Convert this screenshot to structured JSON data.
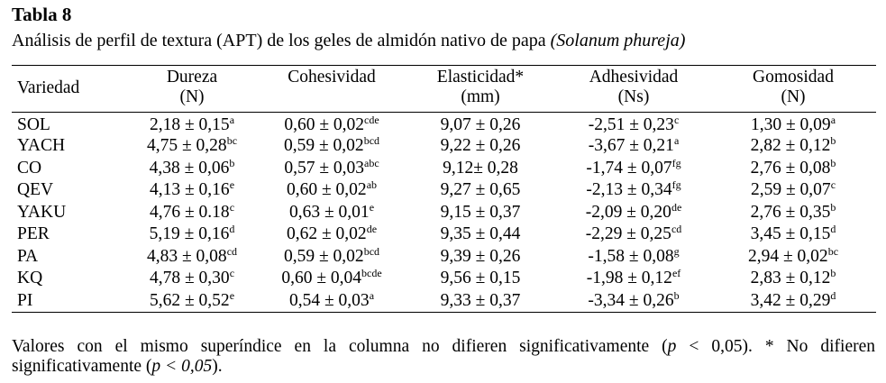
{
  "table_label": "Tabla 8",
  "caption": {
    "text": "Análisis de perfil de textura (APT) de los geles de almidón nativo de papa ",
    "species": "(Solanum phureja)"
  },
  "columns": [
    {
      "line1": "Variedad",
      "line2": ""
    },
    {
      "line1": "Dureza",
      "line2": "(N)"
    },
    {
      "line1": "Cohesividad",
      "line2": ""
    },
    {
      "line1": "Elasticidad*",
      "line2": "(mm)"
    },
    {
      "line1": "Adhesividad",
      "line2": "(Ns)"
    },
    {
      "line1": "Gomosidad",
      "line2": "(N)"
    }
  ],
  "rows": [
    {
      "variedad": "SOL",
      "cells": [
        {
          "v": "2,18 ± 0,15",
          "s": "a"
        },
        {
          "v": "0,60 ± 0,02",
          "s": "cde"
        },
        {
          "v": "9,07 ± 0,26",
          "s": ""
        },
        {
          "v": "-2,51 ± 0,23",
          "s": "c"
        },
        {
          "v": "1,30 ± 0,09",
          "s": "a"
        }
      ]
    },
    {
      "variedad": "YACH",
      "cells": [
        {
          "v": "4,75 ± 0,28",
          "s": "bc"
        },
        {
          "v": "0,59 ± 0,02",
          "s": "bcd"
        },
        {
          "v": "9,22 ± 0,26",
          "s": ""
        },
        {
          "v": "-3,67 ± 0,21",
          "s": "a"
        },
        {
          "v": "2,82 ± 0,12",
          "s": "b"
        }
      ]
    },
    {
      "variedad": "CO",
      "cells": [
        {
          "v": "4,38 ± 0,06",
          "s": "b"
        },
        {
          "v": "0,57 ± 0,03",
          "s": "abc"
        },
        {
          "v": "9,12± 0,28",
          "s": ""
        },
        {
          "v": "-1,74 ± 0,07",
          "s": "fg"
        },
        {
          "v": "2,76 ± 0,08",
          "s": "b"
        }
      ]
    },
    {
      "variedad": "QEV",
      "cells": [
        {
          "v": "4,13 ± 0,16",
          "s": "e"
        },
        {
          "v": "0,60 ± 0,02",
          "s": "ab"
        },
        {
          "v": "9,27 ± 0,65",
          "s": ""
        },
        {
          "v": "-2,13 ± 0,34",
          "s": "fg"
        },
        {
          "v": "2,59 ± 0,07",
          "s": "c"
        }
      ]
    },
    {
      "variedad": "YAKU",
      "cells": [
        {
          "v": "4,76 ± 0.18",
          "s": "c"
        },
        {
          "v": "0,63 ± 0,01",
          "s": "e"
        },
        {
          "v": "9,15 ± 0,37",
          "s": ""
        },
        {
          "v": "-2,09 ± 0,20",
          "s": "de"
        },
        {
          "v": "2,76 ± 0,35",
          "s": "b"
        }
      ]
    },
    {
      "variedad": "PER",
      "cells": [
        {
          "v": "5,19 ± 0,16",
          "s": "d"
        },
        {
          "v": "0,62 ± 0,02",
          "s": "de"
        },
        {
          "v": "9,35 ± 0,44",
          "s": ""
        },
        {
          "v": "-2,29 ± 0,25",
          "s": "cd"
        },
        {
          "v": "3,45 ± 0,15",
          "s": "d"
        }
      ]
    },
    {
      "variedad": "PA",
      "cells": [
        {
          "v": "4,83 ± 0,08",
          "s": "cd"
        },
        {
          "v": "0,59 ± 0,02",
          "s": "bcd"
        },
        {
          "v": "9,39 ± 0,26",
          "s": ""
        },
        {
          "v": "-1,58 ± 0,08",
          "s": "g"
        },
        {
          "v": "2,94 ± 0,02",
          "s": "bc"
        }
      ]
    },
    {
      "variedad": "KQ",
      "cells": [
        {
          "v": "4,78 ± 0,30",
          "s": "c"
        },
        {
          "v": "0,60 ± 0,04",
          "s": "bcde"
        },
        {
          "v": "9,56 ± 0,15",
          "s": ""
        },
        {
          "v": "-1,98 ± 0,12",
          "s": "ef"
        },
        {
          "v": "2,83 ± 0,12",
          "s": "b"
        }
      ]
    },
    {
      "variedad": "PI",
      "cells": [
        {
          "v": "5,62 ± 0,52",
          "s": "e"
        },
        {
          "v": "0,54 ± 0,03",
          "s": "a"
        },
        {
          "v": "9,33 ± 0,37",
          "s": ""
        },
        {
          "v": "-3,34 ± 0,26",
          "s": "b"
        },
        {
          "v": "3,42 ± 0,29",
          "s": "d"
        }
      ]
    }
  ],
  "footnote": {
    "part1": "Valores con el mismo superíndice en la columna no difieren significativamente (",
    "p1": "p",
    "part2": " < 0,05). * No difieren significativamente (",
    "p2": "p < 0,05",
    "part3": ")."
  }
}
